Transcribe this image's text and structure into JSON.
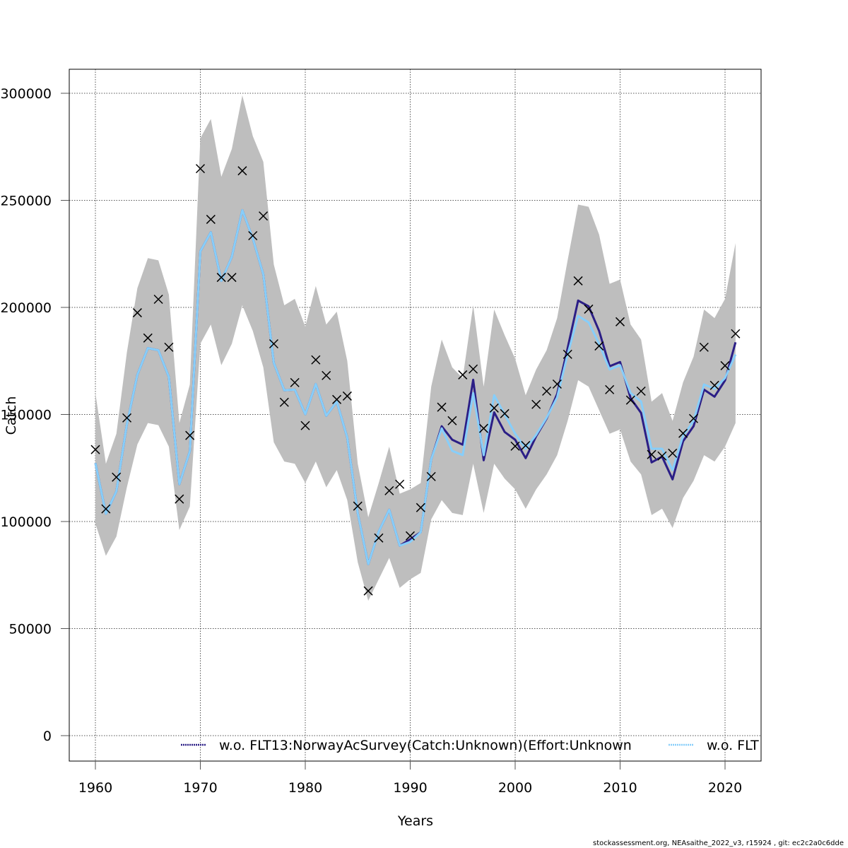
{
  "chart_data": {
    "type": "line",
    "title": "",
    "xlabel": "Years",
    "ylabel": "Catch",
    "xlim": [
      1957.5,
      2023.4
    ],
    "ylim": [
      -12000,
      311000
    ],
    "grid": true,
    "x_ticks": [
      1960,
      1970,
      1980,
      1990,
      2000,
      2010,
      2020
    ],
    "x_tick_labels": [
      "1960",
      "1970",
      "1980",
      "1990",
      "2000",
      "2010",
      "2020"
    ],
    "y_ticks": [
      0,
      50000,
      100000,
      150000,
      200000,
      250000,
      300000
    ],
    "y_tick_labels": [
      "0",
      "50000",
      "100000",
      "150000",
      "200000",
      "250000",
      "300000"
    ],
    "x": [
      1960,
      1961,
      1962,
      1963,
      1964,
      1965,
      1966,
      1967,
      1968,
      1969,
      1970,
      1971,
      1972,
      1973,
      1974,
      1975,
      1976,
      1977,
      1978,
      1979,
      1980,
      1981,
      1982,
      1983,
      1984,
      1985,
      1986,
      1987,
      1988,
      1989,
      1990,
      1991,
      1992,
      1993,
      1994,
      1995,
      1996,
      1997,
      1998,
      1999,
      2000,
      2001,
      2002,
      2003,
      2004,
      2005,
      2006,
      2007,
      2008,
      2009,
      2010,
      2011,
      2012,
      2013,
      2014,
      2015,
      2016,
      2017,
      2018,
      2019,
      2020,
      2021
    ],
    "band": {
      "name": "confidence interval",
      "color": "#bebebe",
      "upper": [
        160000,
        127000,
        141000,
        179000,
        209000,
        223000,
        222000,
        206000,
        146000,
        164000,
        279000,
        288000,
        261000,
        274000,
        299000,
        280000,
        268000,
        220000,
        201000,
        204000,
        191000,
        210000,
        192000,
        198000,
        175000,
        127000,
        102000,
        118000,
        135000,
        113000,
        115000,
        118000,
        163000,
        185000,
        172000,
        167000,
        201000,
        163000,
        199000,
        187000,
        176000,
        159000,
        171000,
        180000,
        195000,
        222000,
        248000,
        247000,
        234000,
        211000,
        213000,
        192000,
        185000,
        156000,
        160000,
        147000,
        165000,
        177000,
        199000,
        195000,
        204000,
        230000
      ],
      "lower": [
        99000,
        84000,
        93000,
        116000,
        136000,
        146000,
        145000,
        135000,
        96000,
        107000,
        183000,
        192000,
        173000,
        183000,
        201000,
        189000,
        172000,
        137000,
        128000,
        127000,
        118000,
        128000,
        116000,
        124000,
        110000,
        81000,
        63000,
        73000,
        83000,
        69000,
        73000,
        76000,
        101000,
        110000,
        104000,
        103000,
        127000,
        104000,
        127000,
        120000,
        115000,
        106000,
        115000,
        122000,
        131000,
        147000,
        166000,
        163000,
        152000,
        141000,
        143000,
        128000,
        122000,
        103000,
        106000,
        97000,
        111000,
        119000,
        131000,
        128000,
        135000,
        146000
      ]
    },
    "series": [
      {
        "name": "w.o. FLT13:NorwayAcSurvey(Catch:Unknown)(Effort:Unknown",
        "color": "#2b1e86",
        "style": "solid",
        "values": [
          127300,
          103600,
          114100,
          145400,
          168500,
          181000,
          180000,
          167500,
          117400,
          132900,
          226200,
          235100,
          212400,
          223600,
          245400,
          232200,
          215400,
          174100,
          161300,
          161600,
          150100,
          164200,
          149400,
          156000,
          139200,
          103900,
          80100,
          95300,
          105500,
          88700,
          91700,
          95000,
          129000,
          144500,
          138200,
          135900,
          166200,
          128600,
          151000,
          141800,
          138200,
          129600,
          139800,
          148100,
          159600,
          181000,
          203200,
          200500,
          189000,
          172500,
          174500,
          157600,
          150700,
          127600,
          130300,
          119700,
          137500,
          144500,
          161600,
          158300,
          165900,
          183700
        ]
      },
      {
        "name": "w.o. FLT",
        "color": "#87cefa",
        "style": "dotted",
        "values": [
          127300,
          103600,
          114100,
          145400,
          168500,
          181000,
          180000,
          167500,
          117400,
          132900,
          226200,
          235100,
          212400,
          223600,
          245400,
          232200,
          215400,
          174100,
          161300,
          161600,
          150100,
          164200,
          149400,
          156000,
          139200,
          103900,
          80100,
          95300,
          105500,
          88700,
          90500,
          95000,
          129000,
          143500,
          133000,
          131000,
          160000,
          131000,
          159000,
          150000,
          141000,
          134000,
          140500,
          148500,
          158000,
          178000,
          196000,
          193000,
          183000,
          171000,
          173000,
          160000,
          156000,
          134000,
          134000,
          124000,
          140000,
          147000,
          164000,
          162000,
          167000,
          178000
        ]
      }
    ],
    "observed": {
      "name": "observed catch",
      "marker": "x",
      "color": "#000000",
      "values": [
        133600,
        105900,
        120700,
        148400,
        197500,
        185700,
        203800,
        181400,
        110500,
        140200,
        264800,
        241100,
        214000,
        214000,
        263800,
        233500,
        242700,
        183000,
        155700,
        164900,
        144800,
        175500,
        168200,
        157000,
        158600,
        107200,
        67600,
        92300,
        114400,
        117400,
        93300,
        106500,
        121000,
        153400,
        147100,
        168500,
        171200,
        143500,
        153000,
        150400,
        135200,
        135500,
        154700,
        160900,
        164200,
        178100,
        212400,
        199200,
        182000,
        161600,
        193300,
        156700,
        160900,
        131300,
        130600,
        131900,
        141200,
        148100,
        181400,
        163600,
        172800,
        187700
      ]
    },
    "legend": {
      "placement": "bottom",
      "entries": [
        {
          "label": "w.o. FLT13:NorwayAcSurvey(Catch:Unknown)(Effort:Unknown",
          "color": "#2b1e86"
        },
        {
          "label": "w.o. FLT",
          "color": "#87cefa"
        }
      ]
    }
  },
  "footer": "stockassessment.org, NEAsaithe_2022_v3, r15924 , git: ec2c2a0c6dde"
}
